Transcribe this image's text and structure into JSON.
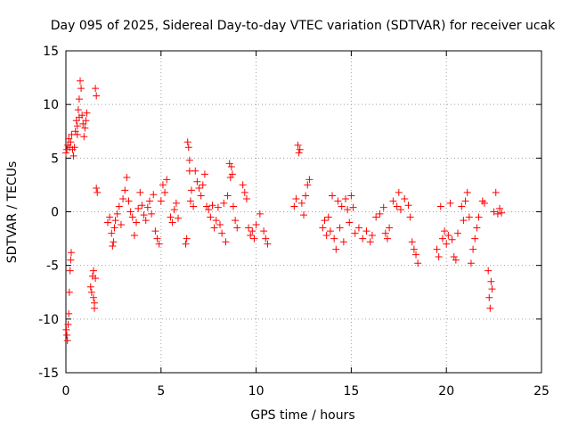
{
  "chart_data": {
    "type": "scatter",
    "title": "Day 095 of 2025, Sidereal Day-to-day VTEC variation (SDTVAR) for receiver ucak",
    "xlabel": "GPS time / hours",
    "ylabel": "SDTVAR / TECUs",
    "xlim": [
      0,
      25
    ],
    "ylim": [
      -15,
      15
    ],
    "xticks": [
      0,
      5,
      10,
      15,
      20,
      25
    ],
    "xtick_labels": [
      "0",
      "5",
      "10",
      "15",
      "20",
      "25"
    ],
    "yticks": [
      -15,
      -10,
      -5,
      0,
      5,
      10,
      15
    ],
    "ytick_labels": [
      "-15",
      "-10",
      "-5",
      "0",
      "5",
      "10",
      "15"
    ],
    "grid": true,
    "marker": "+",
    "color": "#ff0000",
    "series": [
      {
        "name": "SDTVAR",
        "points": [
          [
            0.0,
            5.5
          ],
          [
            0.05,
            5.8
          ],
          [
            0.1,
            6.2
          ],
          [
            0.15,
            6.8
          ],
          [
            0.2,
            6.0
          ],
          [
            0.25,
            6.5
          ],
          [
            0.3,
            7.2
          ],
          [
            0.35,
            5.8
          ],
          [
            0.4,
            5.2
          ],
          [
            0.45,
            6.0
          ],
          [
            0.5,
            7.5
          ],
          [
            0.55,
            8.5
          ],
          [
            0.6,
            8.0
          ],
          [
            0.65,
            9.5
          ],
          [
            0.7,
            10.5
          ],
          [
            0.75,
            12.2
          ],
          [
            0.8,
            11.5
          ],
          [
            0.85,
            9.0
          ],
          [
            0.9,
            8.2
          ],
          [
            0.95,
            7.0
          ],
          [
            1.0,
            7.8
          ],
          [
            1.05,
            8.5
          ],
          [
            1.1,
            9.2
          ],
          [
            0.6,
            7.2
          ],
          [
            0.7,
            8.8
          ],
          [
            0.02,
            -11.0
          ],
          [
            0.05,
            -11.5
          ],
          [
            0.08,
            -12.0
          ],
          [
            0.12,
            -10.5
          ],
          [
            0.15,
            -9.5
          ],
          [
            0.18,
            -7.5
          ],
          [
            0.22,
            -5.5
          ],
          [
            0.25,
            -4.5
          ],
          [
            0.28,
            -3.8
          ],
          [
            1.3,
            -7.0
          ],
          [
            1.35,
            -7.5
          ],
          [
            1.4,
            -6.0
          ],
          [
            1.45,
            -8.0
          ],
          [
            1.5,
            -8.5
          ],
          [
            1.55,
            -6.2
          ],
          [
            1.5,
            -9.0
          ],
          [
            1.45,
            -5.5
          ],
          [
            1.55,
            11.5
          ],
          [
            1.6,
            10.8
          ],
          [
            1.6,
            2.2
          ],
          [
            1.65,
            1.8
          ],
          [
            2.2,
            -1.0
          ],
          [
            2.3,
            -0.5
          ],
          [
            2.4,
            -2.0
          ],
          [
            2.45,
            -3.2
          ],
          [
            2.5,
            -2.8
          ],
          [
            2.55,
            -1.5
          ],
          [
            2.6,
            -0.8
          ],
          [
            2.7,
            -0.2
          ],
          [
            2.8,
            0.5
          ],
          [
            2.9,
            -1.2
          ],
          [
            3.0,
            1.2
          ],
          [
            3.1,
            2.0
          ],
          [
            3.2,
            3.2
          ],
          [
            3.3,
            1.0
          ],
          [
            3.4,
            0.0
          ],
          [
            3.5,
            -0.5
          ],
          [
            3.6,
            -2.2
          ],
          [
            3.7,
            -1.0
          ],
          [
            3.8,
            0.3
          ],
          [
            3.9,
            1.8
          ],
          [
            4.0,
            0.6
          ],
          [
            4.1,
            -0.3
          ],
          [
            4.2,
            -0.8
          ],
          [
            4.3,
            0.4
          ],
          [
            4.4,
            1.0
          ],
          [
            4.5,
            -0.2
          ],
          [
            4.6,
            1.6
          ],
          [
            4.7,
            -1.8
          ],
          [
            4.8,
            -2.5
          ],
          [
            4.9,
            -3.0
          ],
          [
            5.0,
            1.0
          ],
          [
            5.1,
            2.5
          ],
          [
            5.2,
            1.8
          ],
          [
            5.3,
            3.0
          ],
          [
            5.5,
            -0.5
          ],
          [
            5.6,
            -1.0
          ],
          [
            5.7,
            0.2
          ],
          [
            5.8,
            0.8
          ],
          [
            5.9,
            -0.6
          ],
          [
            6.3,
            -3.0
          ],
          [
            6.35,
            -2.5
          ],
          [
            6.4,
            6.5
          ],
          [
            6.45,
            6.0
          ],
          [
            6.5,
            4.8
          ],
          [
            6.5,
            3.8
          ],
          [
            6.55,
            1.0
          ],
          [
            6.6,
            2.0
          ],
          [
            6.7,
            0.5
          ],
          [
            6.8,
            3.8
          ],
          [
            6.9,
            2.8
          ],
          [
            7.0,
            2.2
          ],
          [
            7.1,
            1.5
          ],
          [
            7.2,
            2.5
          ],
          [
            7.3,
            3.5
          ],
          [
            7.4,
            0.5
          ],
          [
            7.5,
            0.2
          ],
          [
            7.6,
            -0.5
          ],
          [
            7.7,
            0.6
          ],
          [
            7.8,
            -1.5
          ],
          [
            7.9,
            -0.8
          ],
          [
            8.0,
            0.4
          ],
          [
            8.1,
            -1.2
          ],
          [
            8.2,
            -2.0
          ],
          [
            8.3,
            0.8
          ],
          [
            8.4,
            -2.8
          ],
          [
            8.5,
            1.5
          ],
          [
            8.6,
            4.5
          ],
          [
            8.65,
            3.2
          ],
          [
            8.7,
            4.2
          ],
          [
            8.75,
            3.5
          ],
          [
            8.8,
            0.5
          ],
          [
            8.9,
            -0.8
          ],
          [
            9.0,
            -1.5
          ],
          [
            9.3,
            2.5
          ],
          [
            9.4,
            1.8
          ],
          [
            9.5,
            1.2
          ],
          [
            9.6,
            -1.5
          ],
          [
            9.7,
            -2.2
          ],
          [
            9.8,
            -1.8
          ],
          [
            9.9,
            -2.5
          ],
          [
            10.0,
            -1.2
          ],
          [
            10.2,
            -0.2
          ],
          [
            10.4,
            -1.8
          ],
          [
            10.5,
            -2.5
          ],
          [
            10.6,
            -3.0
          ],
          [
            12.0,
            0.5
          ],
          [
            12.1,
            1.2
          ],
          [
            12.2,
            6.2
          ],
          [
            12.25,
            5.5
          ],
          [
            12.3,
            5.8
          ],
          [
            12.4,
            0.8
          ],
          [
            12.5,
            -0.3
          ],
          [
            12.6,
            1.5
          ],
          [
            12.7,
            2.5
          ],
          [
            12.8,
            3.0
          ],
          [
            13.5,
            -1.5
          ],
          [
            13.6,
            -0.8
          ],
          [
            13.7,
            -2.2
          ],
          [
            13.8,
            -0.5
          ],
          [
            13.9,
            -1.8
          ],
          [
            14.0,
            1.5
          ],
          [
            14.1,
            -2.5
          ],
          [
            14.2,
            -3.5
          ],
          [
            14.3,
            1.0
          ],
          [
            14.4,
            -1.5
          ],
          [
            14.5,
            0.5
          ],
          [
            14.6,
            -2.8
          ],
          [
            14.7,
            1.2
          ],
          [
            14.8,
            0.2
          ],
          [
            14.9,
            -1.0
          ],
          [
            15.0,
            1.5
          ],
          [
            15.1,
            0.4
          ],
          [
            15.2,
            -2.0
          ],
          [
            15.4,
            -1.5
          ],
          [
            15.6,
            -2.5
          ],
          [
            15.8,
            -1.8
          ],
          [
            16.0,
            -2.8
          ],
          [
            16.1,
            -2.2
          ],
          [
            16.3,
            -0.5
          ],
          [
            16.5,
            -0.2
          ],
          [
            16.7,
            0.4
          ],
          [
            16.8,
            -2.0
          ],
          [
            16.9,
            -2.5
          ],
          [
            17.0,
            -1.5
          ],
          [
            17.2,
            1.0
          ],
          [
            17.4,
            0.5
          ],
          [
            17.5,
            1.8
          ],
          [
            17.6,
            0.2
          ],
          [
            17.8,
            1.2
          ],
          [
            18.0,
            0.6
          ],
          [
            18.1,
            -0.5
          ],
          [
            18.2,
            -2.8
          ],
          [
            18.3,
            -3.5
          ],
          [
            18.4,
            -4.0
          ],
          [
            18.5,
            -4.8
          ],
          [
            19.5,
            -3.5
          ],
          [
            19.6,
            -4.2
          ],
          [
            19.7,
            0.5
          ],
          [
            19.8,
            -2.5
          ],
          [
            19.9,
            -1.8
          ],
          [
            20.0,
            -3.0
          ],
          [
            20.1,
            -2.2
          ],
          [
            20.2,
            0.8
          ],
          [
            20.3,
            -2.6
          ],
          [
            20.4,
            -4.2
          ],
          [
            20.5,
            -4.5
          ],
          [
            20.6,
            -2.0
          ],
          [
            20.8,
            0.5
          ],
          [
            20.9,
            -0.8
          ],
          [
            21.0,
            1.0
          ],
          [
            21.1,
            1.8
          ],
          [
            21.2,
            -0.5
          ],
          [
            21.3,
            -4.8
          ],
          [
            21.4,
            -3.5
          ],
          [
            21.5,
            -2.5
          ],
          [
            21.6,
            -1.5
          ],
          [
            21.7,
            -0.5
          ],
          [
            21.9,
            1.0
          ],
          [
            22.0,
            0.8
          ],
          [
            22.2,
            -5.5
          ],
          [
            22.25,
            -8.0
          ],
          [
            22.3,
            -9.0
          ],
          [
            22.35,
            -6.5
          ],
          [
            22.4,
            -7.2
          ],
          [
            22.5,
            0.0
          ],
          [
            22.6,
            1.8
          ],
          [
            22.7,
            -0.2
          ],
          [
            22.8,
            0.3
          ],
          [
            22.9,
            -0.1
          ]
        ]
      }
    ]
  }
}
